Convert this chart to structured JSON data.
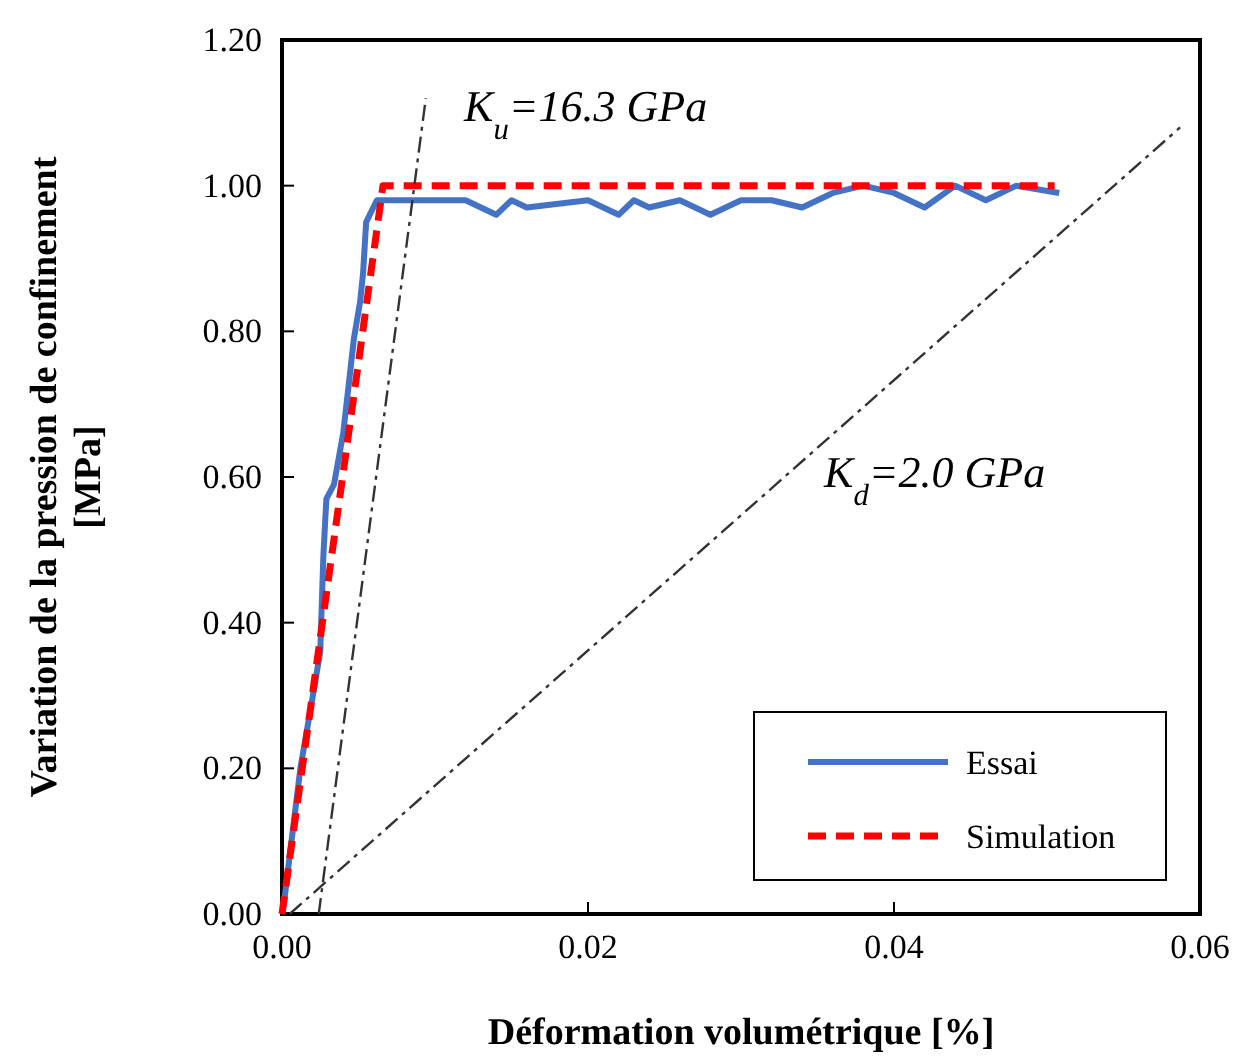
{
  "chart_data": {
    "type": "line",
    "xlabel": "Déformation volumétrique [%]",
    "ylabel": "Variation de la pression de confinement\n[MPa]",
    "xlim": [
      0,
      0.06
    ],
    "ylim": [
      0,
      1.2
    ],
    "xticks": [
      {
        "value": 0,
        "label": "0.00"
      },
      {
        "value": 0.02,
        "label": "0.02"
      },
      {
        "value": 0.04,
        "label": "0.04"
      },
      {
        "value": 0.06,
        "label": "0.06"
      }
    ],
    "yticks": [
      {
        "value": 0,
        "label": "0.00"
      },
      {
        "value": 0.2,
        "label": "0.20"
      },
      {
        "value": 0.4,
        "label": "0.40"
      },
      {
        "value": 0.6,
        "label": "0.60"
      },
      {
        "value": 0.8,
        "label": "0.80"
      },
      {
        "value": 1.0,
        "label": "1.00"
      },
      {
        "value": 1.2,
        "label": "1.20"
      }
    ],
    "grid": false,
    "legend": "bottom right",
    "marker": "none",
    "series": [
      {
        "name": "Essai",
        "color": "#4472c4",
        "line_style": "solid",
        "x": [
          0.0001,
          0.0012,
          0.0021,
          0.0025,
          0.0027,
          0.0029,
          0.0034,
          0.004,
          0.0047,
          0.0051,
          0.0053,
          0.0055,
          0.0062,
          0.008,
          0.012,
          0.014,
          0.015,
          0.016,
          0.02,
          0.022,
          0.023,
          0.024,
          0.026,
          0.028,
          0.03,
          0.032,
          0.034,
          0.036,
          0.038,
          0.04,
          0.042,
          0.044,
          0.046,
          0.048,
          0.0508
        ],
        "values": [
          0.01,
          0.2,
          0.31,
          0.36,
          0.49,
          0.57,
          0.59,
          0.66,
          0.79,
          0.84,
          0.88,
          0.95,
          0.98,
          0.98,
          0.98,
          0.96,
          0.98,
          0.97,
          0.98,
          0.96,
          0.98,
          0.97,
          0.98,
          0.96,
          0.98,
          0.98,
          0.97,
          0.99,
          1.0,
          0.99,
          0.97,
          1.0,
          0.98,
          1.0,
          0.99
        ]
      },
      {
        "name": "Simulation",
        "color": "#ff0000",
        "line_style": "dashed",
        "x": [
          0,
          0.0066,
          0.0505
        ],
        "values": [
          0,
          1.0,
          1.0
        ]
      },
      {
        "color": "#333333",
        "line_style": "dashdot",
        "x": [
          0.0024,
          0.0094
        ],
        "values": [
          0,
          1.12
        ]
      },
      {
        "color": "#333333",
        "line_style": "dashdot",
        "x": [
          0.0005,
          0.0587
        ],
        "values": [
          0,
          1.08
        ]
      }
    ],
    "annotations": [
      "K$_{u}$=16.3 GPa",
      "K$_{d}$=2.0 GPa"
    ]
  }
}
